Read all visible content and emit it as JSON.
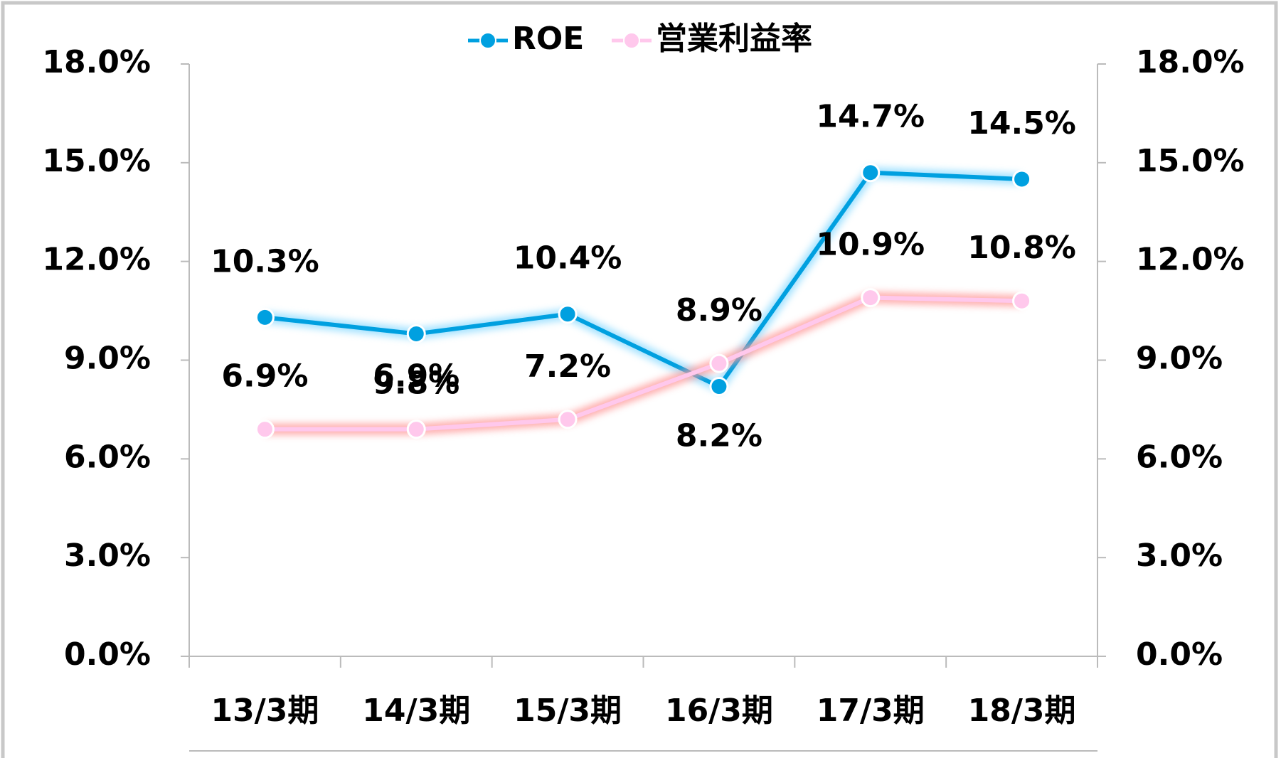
{
  "chart_data": {
    "type": "line",
    "categories": [
      "13/3期",
      "14/3期",
      "15/3期",
      "16/3期",
      "17/3期",
      "18/3期"
    ],
    "series": [
      {
        "name": "ROE",
        "color": "#00a0e0",
        "values": [
          10.3,
          9.8,
          10.4,
          8.2,
          14.7,
          14.5
        ],
        "value_labels": [
          "10.3%",
          "9.8%",
          "10.4%",
          "8.2%",
          "14.7%",
          "14.5%"
        ]
      },
      {
        "name": "営業利益率",
        "color": "#ffc8ec",
        "axis": "y2",
        "values": [
          6.9,
          6.9,
          7.2,
          8.9,
          10.9,
          10.8
        ],
        "value_labels": [
          "6.9%",
          "6.9%",
          "7.2%",
          "8.9%",
          "10.9%",
          "10.8%"
        ]
      }
    ],
    "ylim": [
      0,
      18
    ],
    "yticks": [
      {
        "value": 0,
        "label": "0.0%"
      },
      {
        "value": 3,
        "label": "3.0%"
      },
      {
        "value": 6,
        "label": "6.0%"
      },
      {
        "value": 9,
        "label": "9.0%"
      },
      {
        "value": 12,
        "label": "12.0%"
      },
      {
        "value": 15,
        "label": "15.0%"
      },
      {
        "value": 18,
        "label": "18.0%"
      }
    ],
    "y2lim": [
      0,
      18
    ],
    "y2ticks": [
      {
        "value": 0,
        "label": "0.0%"
      },
      {
        "value": 3,
        "label": "3.0%"
      },
      {
        "value": 6,
        "label": "6.0%"
      },
      {
        "value": 9,
        "label": "9.0%"
      },
      {
        "value": 12,
        "label": "12.0%"
      },
      {
        "value": 15,
        "label": "15.0%"
      },
      {
        "value": 18,
        "label": "18.0%"
      }
    ],
    "legend": "top",
    "grid": false
  }
}
